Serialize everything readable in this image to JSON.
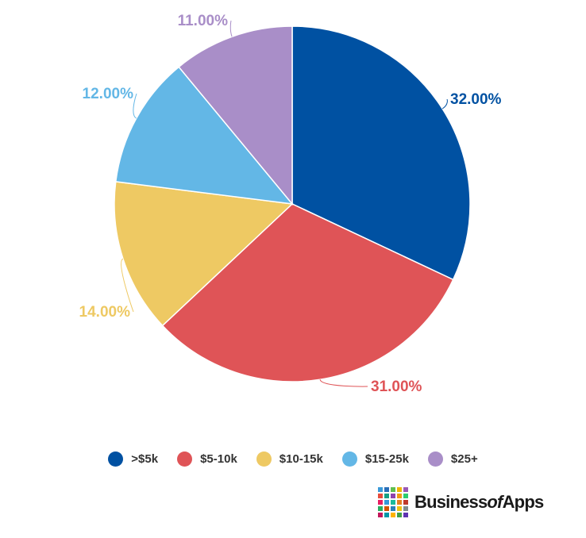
{
  "chart_data": {
    "type": "pie",
    "title": "",
    "slices": [
      {
        "name": ">$5k",
        "value": 32.0,
        "label": "32.00%",
        "color": "#0051a2"
      },
      {
        "name": "$5-10k",
        "value": 31.0,
        "label": "31.00%",
        "color": "#df5457"
      },
      {
        "name": "$10-15k",
        "value": 14.0,
        "label": "14.00%",
        "color": "#eec963"
      },
      {
        "name": "$15-25k",
        "value": 12.0,
        "label": "12.00%",
        "color": "#63b7e6"
      },
      {
        "name": "$25+",
        "value": 11.0,
        "label": "11.00%",
        "color": "#a98ec8"
      }
    ],
    "legend_placement": "bottom-center"
  },
  "legend": {
    "items": [
      {
        "label": ">$5k",
        "color": "#0051a2"
      },
      {
        "label": "$5-10k",
        "color": "#df5457"
      },
      {
        "label": "$10-15k",
        "color": "#eec963"
      },
      {
        "label": "$15-25k",
        "color": "#63b7e6"
      },
      {
        "label": "$25+",
        "color": "#a98ec8"
      }
    ]
  },
  "logo": {
    "text_main": "Business",
    "text_of": "of",
    "text_end": "Apps",
    "grid_colors": [
      "#3a9ad9",
      "#2a6fb8",
      "#5fbf4f",
      "#f0b400",
      "#9b59b6",
      "#e74c3c",
      "#16a085",
      "#8e44ad",
      "#f39c12",
      "#2ecc71",
      "#e91e63",
      "#3498db",
      "#1abc9c",
      "#e67e22",
      "#c0392b",
      "#27ae60",
      "#d35400",
      "#2980b9",
      "#f1c40f",
      "#7f8c8d",
      "#c2185b",
      "#0097a7",
      "#ffb300",
      "#43a047",
      "#5e35b1"
    ]
  }
}
